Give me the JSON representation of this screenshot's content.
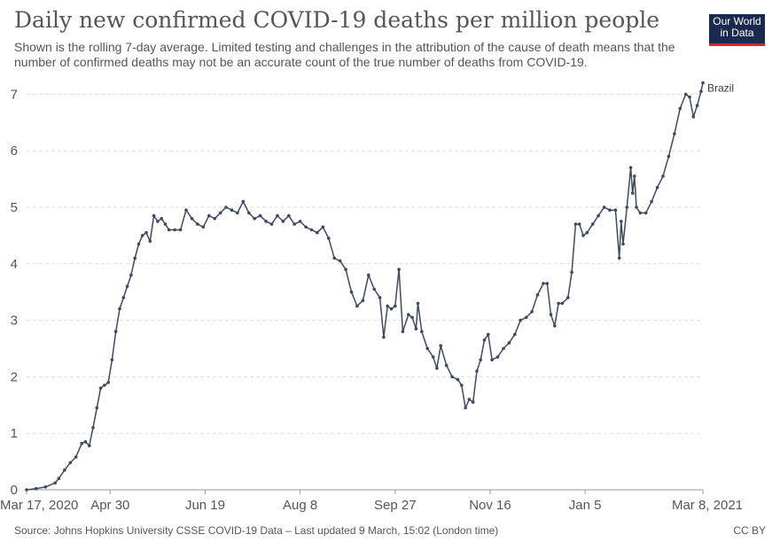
{
  "header": {
    "title": "Daily new confirmed COVID-19 deaths per million people",
    "subtitle": "Shown is the rolling 7-day average. Limited testing and challenges in the attribution of the cause of death means that the number of confirmed deaths may not be an accurate count of the true number of deaths from COVID-19.",
    "logo_line1": "Our World",
    "logo_line2": "in Data"
  },
  "footer": {
    "source": "Source: Johns Hopkins University CSSE COVID-19 Data – Last updated 9 March, 15:02 (London time)",
    "license": "CC BY"
  },
  "colors": {
    "line": "#3e4a60",
    "grid": "#dddddd",
    "axis": "#555555"
  },
  "chart_data": {
    "type": "line",
    "title": "Daily new confirmed COVID-19 deaths per million people",
    "xlabel": "",
    "ylabel": "",
    "x_tick_labels": [
      "Mar 17, 2020",
      "Apr 30",
      "Jun 19",
      "Aug 8",
      "Sep 27",
      "Nov 16",
      "Jan 5",
      "Mar 8, 2021"
    ],
    "x_tick_dates": [
      "2020-03-17",
      "2020-04-30",
      "2020-06-19",
      "2020-08-08",
      "2020-09-27",
      "2020-11-16",
      "2021-01-05",
      "2021-03-08"
    ],
    "y_ticks": [
      0,
      1,
      2,
      3,
      4,
      5,
      6,
      7
    ],
    "ylim": [
      0,
      7.2
    ],
    "grid": true,
    "series": [
      {
        "name": "Brazil",
        "points": [
          [
            "2020-03-17",
            0.0
          ],
          [
            "2020-03-22",
            0.02
          ],
          [
            "2020-03-27",
            0.05
          ],
          [
            "2020-04-01",
            0.12
          ],
          [
            "2020-04-03",
            0.2
          ],
          [
            "2020-04-06",
            0.35
          ],
          [
            "2020-04-09",
            0.48
          ],
          [
            "2020-04-12",
            0.58
          ],
          [
            "2020-04-15",
            0.82
          ],
          [
            "2020-04-17",
            0.85
          ],
          [
            "2020-04-19",
            0.78
          ],
          [
            "2020-04-21",
            1.1
          ],
          [
            "2020-04-23",
            1.45
          ],
          [
            "2020-04-25",
            1.8
          ],
          [
            "2020-04-27",
            1.85
          ],
          [
            "2020-04-29",
            1.9
          ],
          [
            "2020-05-01",
            2.3
          ],
          [
            "2020-05-03",
            2.8
          ],
          [
            "2020-05-05",
            3.2
          ],
          [
            "2020-05-07",
            3.4
          ],
          [
            "2020-05-09",
            3.6
          ],
          [
            "2020-05-11",
            3.8
          ],
          [
            "2020-05-13",
            4.1
          ],
          [
            "2020-05-15",
            4.35
          ],
          [
            "2020-05-17",
            4.5
          ],
          [
            "2020-05-19",
            4.55
          ],
          [
            "2020-05-21",
            4.4
          ],
          [
            "2020-05-23",
            4.85
          ],
          [
            "2020-05-25",
            4.75
          ],
          [
            "2020-05-27",
            4.8
          ],
          [
            "2020-05-29",
            4.7
          ],
          [
            "2020-05-31",
            4.6
          ],
          [
            "2020-06-03",
            4.6
          ],
          [
            "2020-06-06",
            4.6
          ],
          [
            "2020-06-09",
            4.95
          ],
          [
            "2020-06-12",
            4.8
          ],
          [
            "2020-06-15",
            4.7
          ],
          [
            "2020-06-18",
            4.65
          ],
          [
            "2020-06-21",
            4.85
          ],
          [
            "2020-06-24",
            4.8
          ],
          [
            "2020-06-27",
            4.9
          ],
          [
            "2020-06-30",
            5.0
          ],
          [
            "2020-07-03",
            4.95
          ],
          [
            "2020-07-06",
            4.9
          ],
          [
            "2020-07-09",
            5.1
          ],
          [
            "2020-07-12",
            4.9
          ],
          [
            "2020-07-15",
            4.8
          ],
          [
            "2020-07-18",
            4.85
          ],
          [
            "2020-07-21",
            4.75
          ],
          [
            "2020-07-24",
            4.7
          ],
          [
            "2020-07-27",
            4.85
          ],
          [
            "2020-07-30",
            4.75
          ],
          [
            "2020-08-02",
            4.85
          ],
          [
            "2020-08-05",
            4.7
          ],
          [
            "2020-08-08",
            4.75
          ],
          [
            "2020-08-11",
            4.65
          ],
          [
            "2020-08-14",
            4.6
          ],
          [
            "2020-08-17",
            4.55
          ],
          [
            "2020-08-20",
            4.65
          ],
          [
            "2020-08-23",
            4.45
          ],
          [
            "2020-08-26",
            4.1
          ],
          [
            "2020-08-29",
            4.05
          ],
          [
            "2020-09-01",
            3.9
          ],
          [
            "2020-09-04",
            3.5
          ],
          [
            "2020-09-07",
            3.25
          ],
          [
            "2020-09-10",
            3.35
          ],
          [
            "2020-09-13",
            3.8
          ],
          [
            "2020-09-16",
            3.55
          ],
          [
            "2020-09-19",
            3.4
          ],
          [
            "2020-09-21",
            2.7
          ],
          [
            "2020-09-23",
            3.25
          ],
          [
            "2020-09-25",
            3.2
          ],
          [
            "2020-09-27",
            3.25
          ],
          [
            "2020-09-29",
            3.9
          ],
          [
            "2020-10-01",
            2.8
          ],
          [
            "2020-10-04",
            3.1
          ],
          [
            "2020-10-06",
            3.05
          ],
          [
            "2020-10-08",
            2.85
          ],
          [
            "2020-10-09",
            3.3
          ],
          [
            "2020-10-11",
            2.8
          ],
          [
            "2020-10-14",
            2.5
          ],
          [
            "2020-10-17",
            2.35
          ],
          [
            "2020-10-19",
            2.15
          ],
          [
            "2020-10-21",
            2.55
          ],
          [
            "2020-10-24",
            2.2
          ],
          [
            "2020-10-27",
            2.0
          ],
          [
            "2020-10-30",
            1.95
          ],
          [
            "2020-11-01",
            1.85
          ],
          [
            "2020-11-03",
            1.45
          ],
          [
            "2020-11-05",
            1.6
          ],
          [
            "2020-11-07",
            1.55
          ],
          [
            "2020-11-09",
            2.1
          ],
          [
            "2020-11-11",
            2.3
          ],
          [
            "2020-11-13",
            2.65
          ],
          [
            "2020-11-15",
            2.75
          ],
          [
            "2020-11-17",
            2.3
          ],
          [
            "2020-11-20",
            2.35
          ],
          [
            "2020-11-23",
            2.5
          ],
          [
            "2020-11-26",
            2.6
          ],
          [
            "2020-11-29",
            2.75
          ],
          [
            "2020-12-02",
            3.0
          ],
          [
            "2020-12-05",
            3.05
          ],
          [
            "2020-12-08",
            3.15
          ],
          [
            "2020-12-11",
            3.45
          ],
          [
            "2020-12-14",
            3.65
          ],
          [
            "2020-12-16",
            3.65
          ],
          [
            "2020-12-18",
            3.1
          ],
          [
            "2020-12-20",
            2.9
          ],
          [
            "2020-12-22",
            3.3
          ],
          [
            "2020-12-24",
            3.3
          ],
          [
            "2020-12-27",
            3.4
          ],
          [
            "2020-12-29",
            3.85
          ],
          [
            "2020-12-31",
            4.7
          ],
          [
            "2021-01-02",
            4.7
          ],
          [
            "2021-01-04",
            4.5
          ],
          [
            "2021-01-06",
            4.55
          ],
          [
            "2021-01-09",
            4.7
          ],
          [
            "2021-01-12",
            4.85
          ],
          [
            "2021-01-15",
            5.0
          ],
          [
            "2021-01-18",
            4.95
          ],
          [
            "2021-01-21",
            4.95
          ],
          [
            "2021-01-23",
            4.1
          ],
          [
            "2021-01-24",
            4.75
          ],
          [
            "2021-01-25",
            4.35
          ],
          [
            "2021-01-27",
            5.0
          ],
          [
            "2021-01-29",
            5.7
          ],
          [
            "2021-01-30",
            5.25
          ],
          [
            "2021-01-31",
            5.55
          ],
          [
            "2021-02-01",
            5.0
          ],
          [
            "2021-02-03",
            4.9
          ],
          [
            "2021-02-06",
            4.9
          ],
          [
            "2021-02-09",
            5.1
          ],
          [
            "2021-02-12",
            5.35
          ],
          [
            "2021-02-15",
            5.55
          ],
          [
            "2021-02-18",
            5.9
          ],
          [
            "2021-02-21",
            6.3
          ],
          [
            "2021-02-24",
            6.75
          ],
          [
            "2021-02-27",
            7.0
          ],
          [
            "2021-03-01",
            6.95
          ],
          [
            "2021-03-03",
            6.6
          ],
          [
            "2021-03-05",
            6.8
          ],
          [
            "2021-03-07",
            7.05
          ],
          [
            "2021-03-08",
            7.2
          ]
        ]
      }
    ]
  }
}
